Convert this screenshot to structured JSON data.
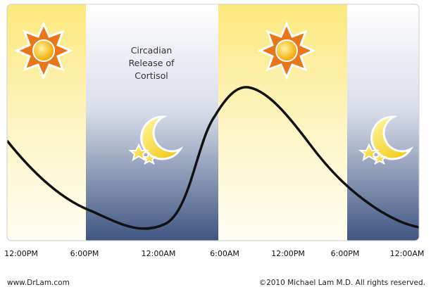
{
  "title_lines": [
    "Circadian",
    "Release of",
    "Cortisol"
  ],
  "time_labels": [
    "12:00PM",
    "6:00PM",
    "12:00AM",
    "6:00AM",
    "12:00PM",
    "6:00PM",
    "12:00AM"
  ],
  "footer": {
    "left": "www.DrLam.com",
    "right": "©2010 Michael Lam M.D. All rights reserved."
  }
}
